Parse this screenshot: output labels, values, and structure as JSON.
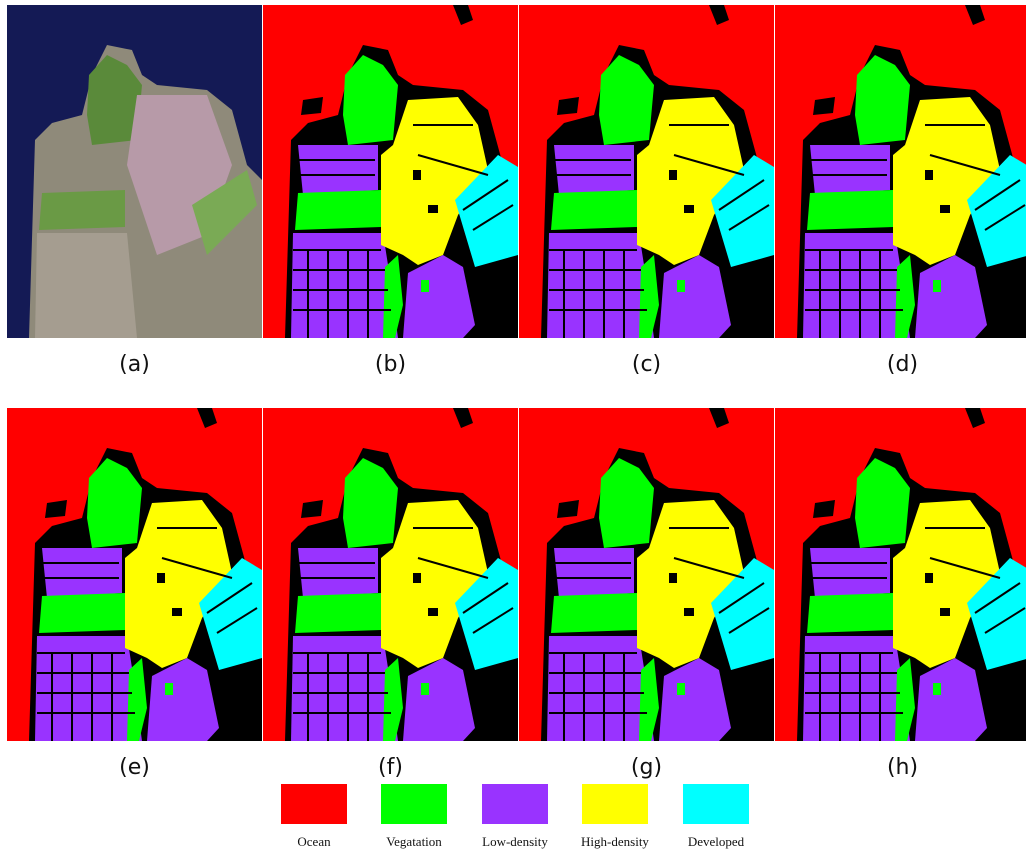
{
  "figure": {
    "panels": [
      "(a)",
      "(b)",
      "(c)",
      "(d)",
      "(e)",
      "(f)",
      "(g)",
      "(h)"
    ],
    "legend": [
      {
        "name": "Ocean",
        "color": "#ff0000"
      },
      {
        "name": "Vegatation",
        "color": "#00ff00"
      },
      {
        "name": "Low-density",
        "color": "#9933ff"
      },
      {
        "name": "High-density",
        "color": "#ffff00"
      },
      {
        "name": "Developed",
        "color": "#00ffff"
      }
    ]
  }
}
